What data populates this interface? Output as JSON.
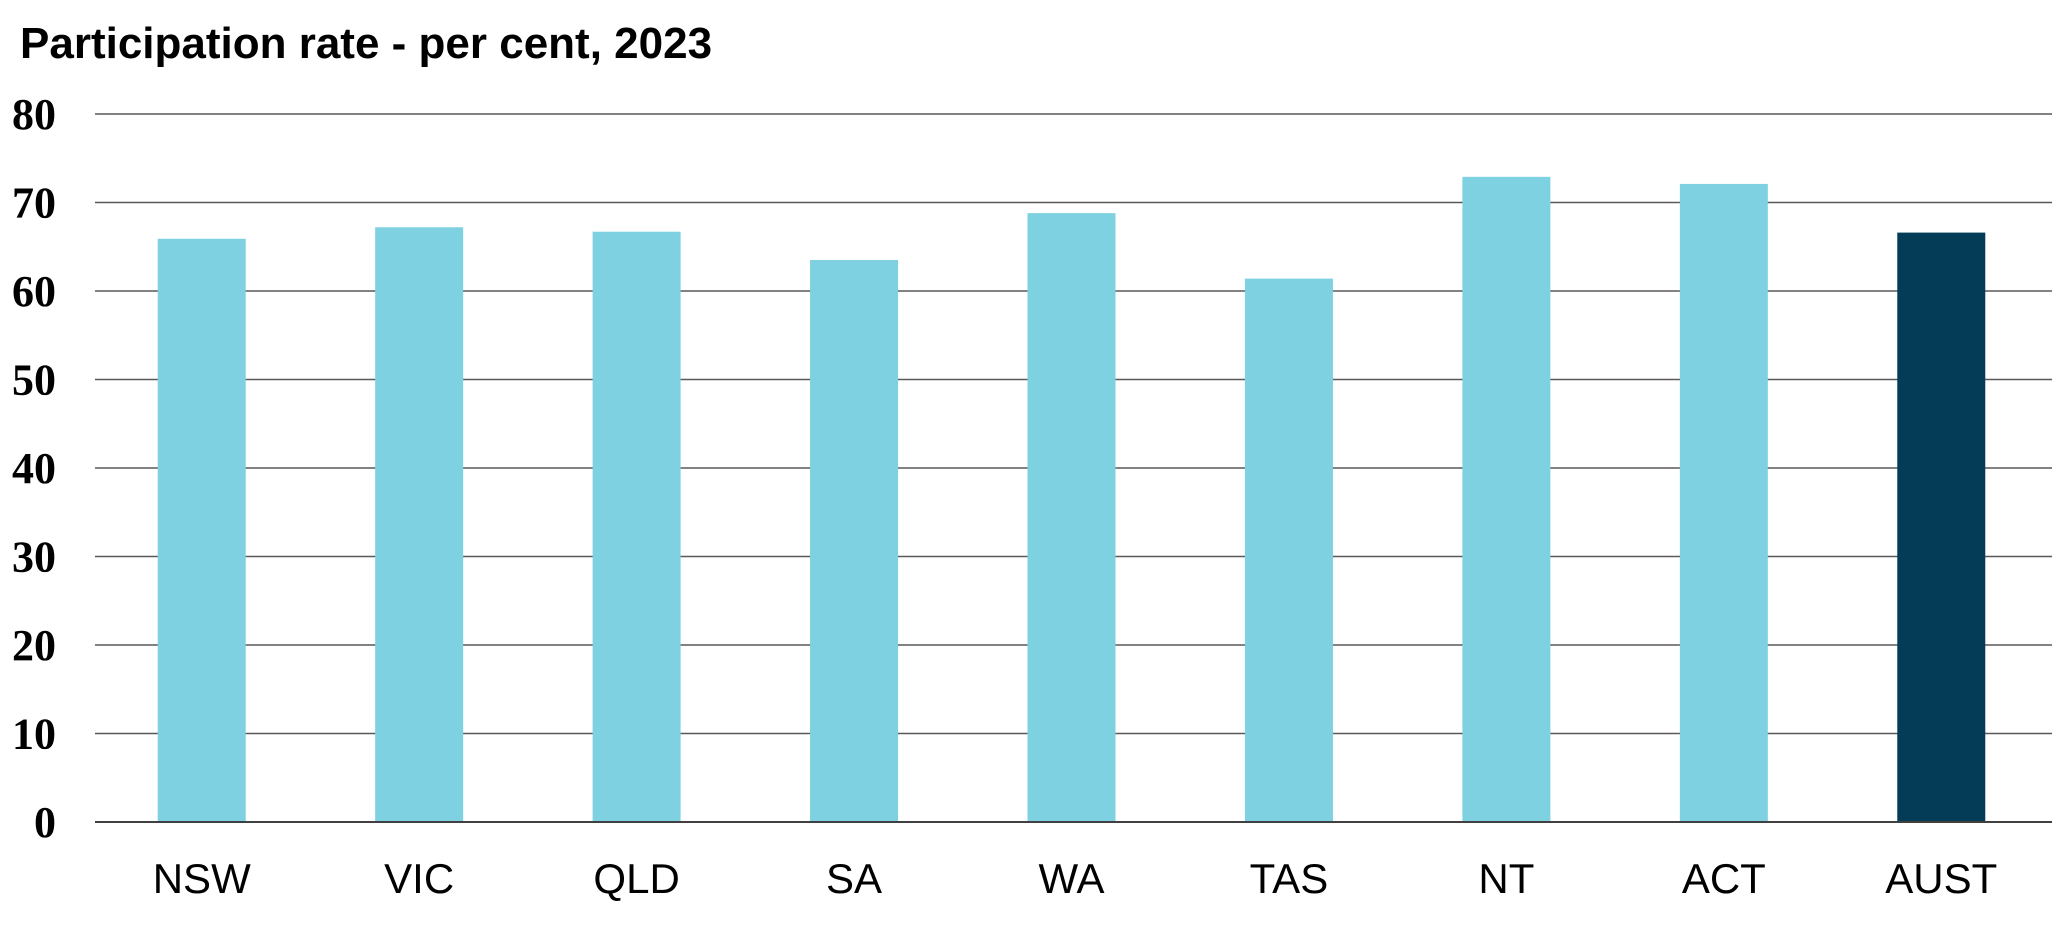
{
  "chart_data": {
    "type": "bar",
    "title": "Participation rate - per cent, 2023",
    "xlabel": "",
    "ylabel": "",
    "categories": [
      "NSW",
      "VIC",
      "QLD",
      "SA",
      "WA",
      "TAS",
      "NT",
      "ACT",
      "AUST"
    ],
    "values": [
      65.9,
      67.2,
      66.7,
      63.5,
      68.8,
      61.4,
      72.9,
      72.1,
      66.6
    ],
    "ylim": [
      0,
      80
    ],
    "yticks": [
      "0",
      "10",
      "20",
      "30",
      "40",
      "50",
      "60",
      "70",
      "80"
    ],
    "grid": true,
    "legend": "none",
    "colors": {
      "state_bar": "#7dd1e1",
      "national_bar": "#043c58",
      "grid": "#595959"
    },
    "highlight_category": "AUST"
  }
}
